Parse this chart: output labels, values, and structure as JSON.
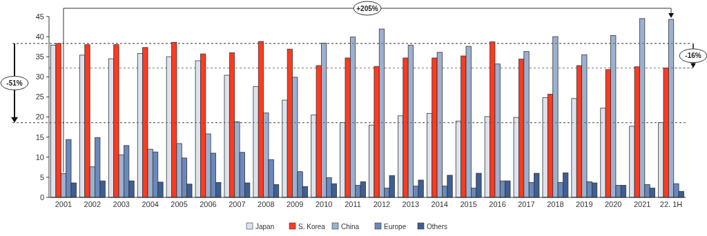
{
  "chart_data": {
    "type": "bar",
    "categories": [
      "2001",
      "2002",
      "2003",
      "2004",
      "2005",
      "2006",
      "2007",
      "2008",
      "2009",
      "2010",
      "2011",
      "2012",
      "2013",
      "2014",
      "2015",
      "2016",
      "2017",
      "2018",
      "2019",
      "2020",
      "2021",
      "22. 1H"
    ],
    "series": [
      {
        "name": "Japan",
        "color": "#dce3ee",
        "values": [
          37.9,
          35.4,
          34.5,
          35.8,
          35.0,
          34.0,
          30.4,
          27.6,
          24.2,
          20.5,
          18.6,
          18.0,
          20.3,
          20.9,
          19.0,
          20.1,
          19.9,
          24.8,
          24.6,
          22.2,
          17.7,
          18.6
        ]
      },
      {
        "name": "S. Korea",
        "color": "#ff3a1f",
        "values": [
          38.3,
          38.0,
          38.0,
          37.3,
          38.6,
          35.7,
          36.0,
          38.8,
          36.9,
          32.8,
          34.7,
          32.6,
          34.7,
          34.7,
          35.2,
          38.7,
          34.4,
          25.7,
          32.8,
          31.8,
          32.5,
          32.2
        ]
      },
      {
        "name": "China",
        "color": "#9cb0d0",
        "values": [
          5.9,
          7.6,
          10.6,
          12.0,
          13.4,
          15.8,
          18.8,
          21.0,
          29.9,
          38.4,
          39.9,
          41.9,
          37.9,
          36.1,
          37.6,
          33.2,
          36.3,
          40.0,
          35.5,
          40.3,
          44.5,
          44.3
        ]
      },
      {
        "name": "Europe",
        "color": "#6a88bc",
        "values": [
          14.4,
          14.9,
          12.9,
          11.3,
          9.8,
          11.0,
          11.2,
          9.4,
          6.4,
          4.9,
          3.0,
          2.3,
          2.8,
          2.8,
          2.3,
          4.1,
          3.7,
          3.7,
          3.9,
          3.0,
          3.2,
          3.4
        ]
      },
      {
        "name": "Others",
        "color": "#3e5f93",
        "values": [
          3.6,
          4.1,
          4.1,
          3.8,
          3.3,
          3.7,
          3.6,
          3.2,
          2.7,
          3.4,
          3.9,
          5.4,
          4.3,
          5.5,
          6.0,
          4.1,
          6.0,
          6.1,
          3.6,
          3.0,
          2.3,
          1.5
        ]
      }
    ],
    "ylim": [
      0,
      45
    ],
    "yticks": [
      0,
      5,
      10,
      15,
      20,
      25,
      30,
      35,
      40,
      45
    ],
    "ref_lines": [
      {
        "axis": "y",
        "value": 38.3,
        "line_style": "dashed"
      },
      {
        "axis": "y",
        "value": 18.6,
        "line_style": "dashed"
      },
      {
        "axis": "y",
        "value": 32.2,
        "line_style": "dashed"
      }
    ],
    "annotations": [
      "+205%",
      "-51%",
      "-16%"
    ],
    "legend": "bottom",
    "grid": false
  }
}
